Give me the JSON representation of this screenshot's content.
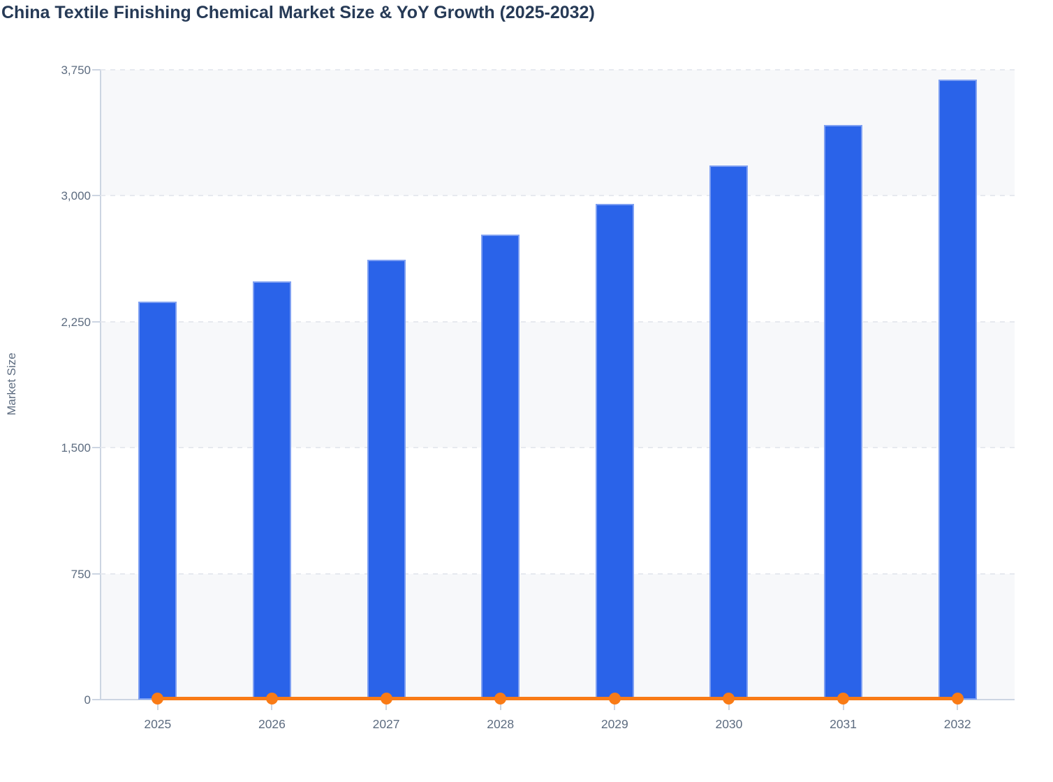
{
  "page": {
    "title": "China Textile Finishing Chemical Market Size & YoY Growth (2025-2032)"
  },
  "chart_data": {
    "type": "bar",
    "title": "China Textile Finishing Chemical Market Size & YoY Growth (2025-2032)",
    "xlabel": "",
    "ylabel": "Market Size",
    "categories": [
      "2025",
      "2026",
      "2027",
      "2028",
      "2029",
      "2030",
      "2031",
      "2032"
    ],
    "series": [
      {
        "name": "Market Size",
        "type": "bar",
        "values": [
          2370,
          2490,
          2620,
          2770,
          2950,
          3180,
          3420,
          3690
        ]
      },
      {
        "name": "YoY Growth",
        "type": "line",
        "values_percent_estimated": [
          4.8,
          5.1,
          5.2,
          5.7,
          6.5,
          7.8,
          7.5,
          7.9
        ],
        "note": "line renders flat at ~0 on the primary Market Size axis, one round marker per year"
      }
    ],
    "ylim": [
      0,
      3750
    ],
    "ytick_values": [
      0,
      750,
      1500,
      2250,
      3000,
      3750
    ],
    "ytick_labels": [
      "0",
      "750",
      "1,500",
      "2,250",
      "3,000",
      "3,750"
    ],
    "grid": "horizontal dashed lines with alternating background bands",
    "legend": "none",
    "colors": {
      "title_text": "#263a56",
      "axis_text": "#5d6c80",
      "bar_fill": "#2a63e9",
      "bar_border": "#7fa0f2",
      "line_orange": "#f97b16",
      "gridline": "#e6e9ef",
      "axis_line": "#ccd5e2",
      "band_fill": "#f7f8fa",
      "background": "#ffffff"
    }
  }
}
